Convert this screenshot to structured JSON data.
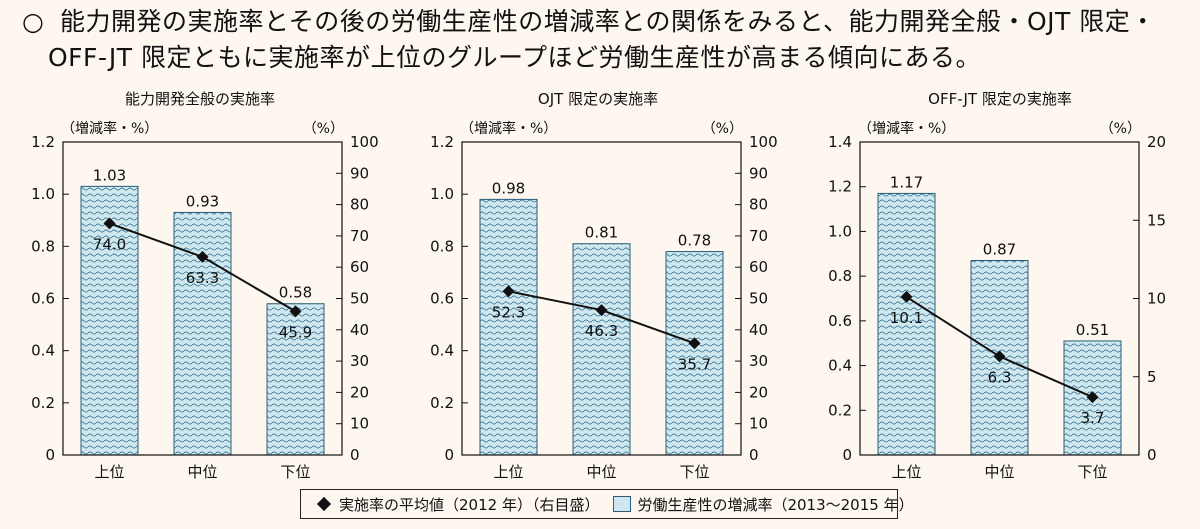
{
  "headline": {
    "bullet": "○",
    "line1": "能力開発の実施率とその後の労働生産性の増減率との関係をみると、能力開発全般・OJT 限定・",
    "line2": "OFF-JT 限定ともに実施率が上位のグループほど労働生産性が高まる傾向にある。"
  },
  "legend": {
    "line_label": "実施率の平均値（2012 年）（右目盛）",
    "bar_label": "労働生産性の増減率（2013〜2015 年）"
  },
  "colors": {
    "bar_fill": "#cfe8ef",
    "bar_stroke": "#2a5d78",
    "wave": "#3a7592",
    "line": "#111111"
  },
  "chart_data": [
    {
      "type": "bar",
      "title": "能力開発全般の実施率",
      "categories": [
        "上位",
        "中位",
        "下位"
      ],
      "left_unit": "（増減率・%）",
      "right_unit": "（%）",
      "series": [
        {
          "name": "労働生産性の増減率（2013〜2015 年）",
          "axis": "left",
          "type": "bar",
          "values": [
            1.03,
            0.93,
            0.58
          ],
          "labels": [
            "1.03",
            "0.93",
            "0.58"
          ]
        },
        {
          "name": "実施率の平均値（2012 年）（右目盛）",
          "axis": "right",
          "type": "line",
          "values": [
            74.0,
            63.3,
            45.9
          ],
          "labels": [
            "74.0",
            "63.3",
            "45.9"
          ]
        }
      ],
      "left_axis": {
        "min": 0,
        "max": 1.2,
        "ticks": [
          0,
          0.2,
          0.4,
          0.6,
          0.8,
          1.0,
          1.2
        ],
        "tick_labels": [
          "0",
          "0.2",
          "0.4",
          "0.6",
          "0.8",
          "1.0",
          "1.2"
        ]
      },
      "right_axis": {
        "min": 0,
        "max": 100,
        "ticks": [
          0,
          10,
          20,
          30,
          40,
          50,
          60,
          70,
          80,
          90,
          100
        ],
        "tick_labels": [
          "0",
          "10",
          "20",
          "30",
          "40",
          "50",
          "60",
          "70",
          "80",
          "90",
          "100"
        ]
      }
    },
    {
      "type": "bar",
      "title": "OJT 限定の実施率",
      "categories": [
        "上位",
        "中位",
        "下位"
      ],
      "left_unit": "（増減率・%）",
      "right_unit": "（%）",
      "series": [
        {
          "name": "労働生産性の増減率（2013〜2015 年）",
          "axis": "left",
          "type": "bar",
          "values": [
            0.98,
            0.81,
            0.78
          ],
          "labels": [
            "0.98",
            "0.81",
            "0.78"
          ]
        },
        {
          "name": "実施率の平均値（2012 年）（右目盛）",
          "axis": "right",
          "type": "line",
          "values": [
            52.3,
            46.3,
            35.7
          ],
          "labels": [
            "52.3",
            "46.3",
            "35.7"
          ]
        }
      ],
      "left_axis": {
        "min": 0,
        "max": 1.2,
        "ticks": [
          0,
          0.2,
          0.4,
          0.6,
          0.8,
          1.0,
          1.2
        ],
        "tick_labels": [
          "0",
          "0.2",
          "0.4",
          "0.6",
          "0.8",
          "1.0",
          "1.2"
        ]
      },
      "right_axis": {
        "min": 0,
        "max": 100,
        "ticks": [
          0,
          10,
          20,
          30,
          40,
          50,
          60,
          70,
          80,
          90,
          100
        ],
        "tick_labels": [
          "0",
          "10",
          "20",
          "30",
          "40",
          "50",
          "60",
          "70",
          "80",
          "90",
          "100"
        ]
      }
    },
    {
      "type": "bar",
      "title": "OFF-JT 限定の実施率",
      "categories": [
        "上位",
        "中位",
        "下位"
      ],
      "left_unit": "（増減率・%）",
      "right_unit": "（%）",
      "series": [
        {
          "name": "労働生産性の増減率（2013〜2015 年）",
          "axis": "left",
          "type": "bar",
          "values": [
            1.17,
            0.87,
            0.51
          ],
          "labels": [
            "1.17",
            "0.87",
            "0.51"
          ]
        },
        {
          "name": "実施率の平均値（2012 年）（右目盛）",
          "axis": "right",
          "type": "line",
          "values": [
            10.1,
            6.3,
            3.7
          ],
          "labels": [
            "10.1",
            "6.3",
            "3.7"
          ]
        }
      ],
      "left_axis": {
        "min": 0,
        "max": 1.4,
        "ticks": [
          0,
          0.2,
          0.4,
          0.6,
          0.8,
          1.0,
          1.2,
          1.4
        ],
        "tick_labels": [
          "0",
          "0.2",
          "0.4",
          "0.6",
          "0.8",
          "1.0",
          "1.2",
          "1.4"
        ]
      },
      "right_axis": {
        "min": 0,
        "max": 20,
        "ticks": [
          0,
          5,
          10,
          15,
          20
        ],
        "tick_labels": [
          "0",
          "5",
          "10",
          "15",
          "20"
        ]
      }
    }
  ]
}
